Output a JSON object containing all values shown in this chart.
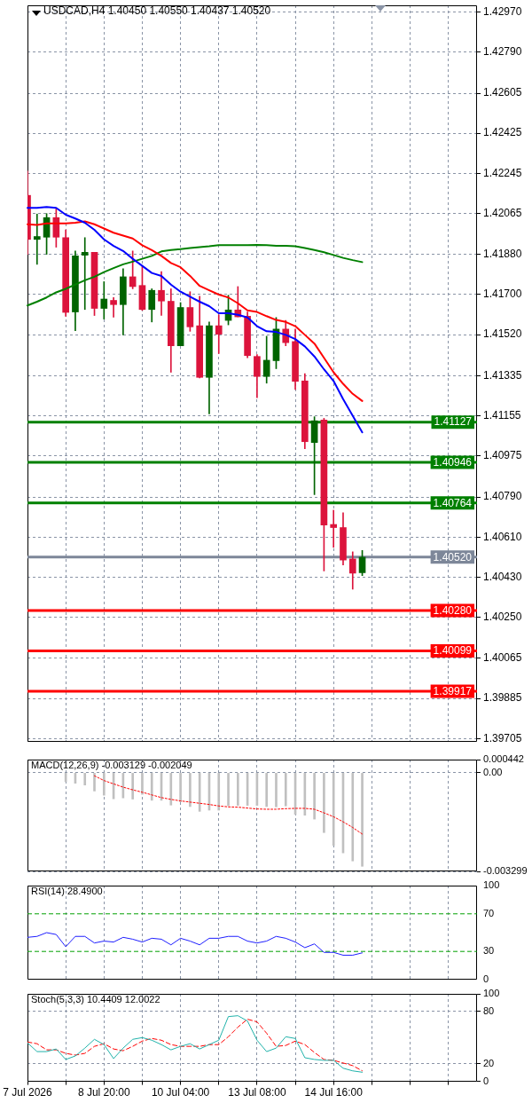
{
  "chart_data": [
    {
      "type": "candlestick",
      "title": "USDCAD,H4 1.40450 1.40550 1.40437 1.40520",
      "categories": [
        null,
        null,
        null,
        null,
        null,
        null,
        null,
        null,
        null,
        null,
        null,
        null,
        null,
        null,
        null,
        null,
        null,
        null,
        null,
        null,
        null,
        null,
        null,
        null,
        null,
        null,
        null,
        null,
        null,
        null,
        null,
        null,
        null,
        null,
        null,
        null,
        null,
        null,
        null,
        null,
        null,
        null,
        null,
        null,
        null,
        null,
        null,
        null
      ],
      "ohlc": [
        [
          1.42146,
          1.42255,
          1.41881,
          1.41948
        ],
        [
          1.41948,
          1.42062,
          1.41836,
          1.41961
        ],
        [
          1.41958,
          1.42064,
          1.41881,
          1.42046
        ],
        [
          1.42046,
          1.42085,
          1.41913,
          1.41958
        ],
        [
          1.41956,
          1.41991,
          1.41603,
          1.4162
        ],
        [
          1.41622,
          1.41896,
          1.41538,
          1.41874
        ],
        [
          1.41877,
          1.41956,
          1.41633,
          1.4189
        ],
        [
          1.4189,
          1.4189,
          1.41606,
          1.41638
        ],
        [
          1.41638,
          1.41758,
          1.4159,
          1.4168
        ],
        [
          1.41674,
          1.41687,
          1.41599,
          1.41655
        ],
        [
          1.41655,
          1.41816,
          1.41519,
          1.4178
        ],
        [
          1.4178,
          1.41896,
          1.41726,
          1.41736
        ],
        [
          1.41741,
          1.41826,
          1.41629,
          1.41633
        ],
        [
          1.41633,
          1.41726,
          1.41577,
          1.41719
        ],
        [
          1.41719,
          1.41803,
          1.41607,
          1.41671
        ],
        [
          1.4167,
          1.41726,
          1.41351,
          1.4147
        ],
        [
          1.4147,
          1.41664,
          1.4147,
          1.41642
        ],
        [
          1.41642,
          1.41713,
          1.41535,
          1.41555
        ],
        [
          1.4156,
          1.41693,
          1.41325,
          1.41328
        ],
        [
          1.41328,
          1.41577,
          1.41164,
          1.4156
        ],
        [
          1.4156,
          1.41609,
          1.41435,
          1.41522
        ],
        [
          1.41584,
          1.41697,
          1.41564,
          1.41631
        ],
        [
          1.41631,
          1.41736,
          1.416,
          1.416
        ],
        [
          1.41603,
          1.41622,
          1.41416,
          1.41426
        ],
        [
          1.41422,
          1.4143,
          1.41237,
          1.41332
        ],
        [
          1.41332,
          1.41513,
          1.41302,
          1.41405
        ],
        [
          1.41403,
          1.41597,
          1.41367,
          1.41545
        ],
        [
          1.41545,
          1.41584,
          1.4147,
          1.41484
        ],
        [
          1.41489,
          1.41545,
          1.41274,
          1.4131
        ],
        [
          1.41312,
          1.41345,
          1.41007,
          1.41039
        ],
        [
          1.41035,
          1.41151,
          1.40801,
          1.41133
        ],
        [
          1.41136,
          1.41144,
          1.40458,
          1.40664
        ],
        [
          1.40667,
          1.40731,
          1.40564,
          1.40653
        ],
        [
          1.40653,
          1.4072,
          1.40485,
          1.40507
        ],
        [
          1.40512,
          1.40544,
          1.40376,
          1.40448
        ],
        [
          1.4045,
          1.4055,
          1.40437,
          1.4052
        ],
        null,
        null,
        null,
        null,
        null,
        null,
        null,
        null,
        null,
        null,
        null,
        null
      ],
      "colors": [
        "#dc143c",
        "#006400",
        "#006400",
        "#dc143c",
        "#dc143c",
        "#006400",
        "#006400",
        "#dc143c",
        "#006400",
        "#dc143c",
        "#006400",
        "#dc143c",
        "#dc143c",
        "#006400",
        "#dc143c",
        "#dc143c",
        "#006400",
        "#dc143c",
        "#dc143c",
        "#006400",
        "#dc143c",
        "#006400",
        "#dc143c",
        "#dc143c",
        "#dc143c",
        "#006400",
        "#006400",
        "#dc143c",
        "#dc143c",
        "#dc143c",
        "#006400",
        "#dc143c",
        "#dc143c",
        "#dc143c",
        "#dc143c",
        "#006400",
        null,
        null,
        null,
        null,
        null,
        null,
        null,
        null,
        null,
        null,
        null,
        null
      ],
      "series": [
        {
          "type": "line",
          "color": "#0000ff",
          "values": [
            1.4209,
            1.4209,
            1.42094,
            1.4209,
            1.42059,
            1.42042,
            1.42023,
            1.41991,
            1.41948,
            1.41919,
            1.41896,
            1.41861,
            1.41829,
            1.41797,
            1.41784,
            1.41745,
            1.41713,
            1.4169,
            1.41668,
            1.41648,
            1.41616,
            1.41616,
            1.41609,
            1.41597,
            1.41558,
            1.41535,
            1.41532,
            1.41519,
            1.415,
            1.41467,
            1.41422,
            1.41364,
            1.41312,
            1.4123,
            1.41156,
            1.41081,
            null,
            null,
            null,
            null,
            null,
            null,
            null,
            null,
            null,
            null,
            null,
            null
          ]
        },
        {
          "type": "line",
          "color": "#ff0000",
          "values": [
            1.42016,
            1.42013,
            1.4202,
            1.4202,
            1.4202,
            1.42023,
            1.42029,
            1.42016,
            1.41997,
            1.41978,
            1.41965,
            1.41952,
            1.41922,
            1.419,
            1.41874,
            1.41842,
            1.41823,
            1.41784,
            1.41739,
            1.41719,
            1.417,
            1.41687,
            1.41661,
            1.41629,
            1.41622,
            1.41603,
            1.41586,
            1.41577,
            1.41558,
            1.41519,
            1.4148,
            1.41416,
            1.41351,
            1.41299,
            1.41254,
            1.41222,
            null,
            null,
            null,
            null,
            null,
            null,
            null,
            null,
            null,
            null,
            null,
            null
          ]
        },
        {
          "type": "line",
          "color": "#008000",
          "values": [
            1.41651,
            1.41668,
            1.41687,
            1.4171,
            1.41726,
            1.41745,
            1.41764,
            1.4178,
            1.41801,
            1.41819,
            1.41836,
            1.41848,
            1.41861,
            1.41874,
            1.41894,
            1.419,
            1.41904,
            1.41909,
            1.41913,
            1.41917,
            1.41922,
            1.41922,
            1.41922,
            1.41922,
            1.41923,
            1.41922,
            1.41919,
            1.41919,
            1.41917,
            1.41909,
            1.419,
            1.4189,
            1.41878,
            1.41865,
            1.41855,
            1.41846,
            null,
            null,
            null,
            null,
            null,
            null,
            null,
            null,
            null,
            null,
            null,
            null
          ]
        }
      ],
      "ylim": [
        1.3969,
        1.43
      ],
      "yticks": [
        1.39705,
        1.39885,
        1.40065,
        {
          "value": 1.4025,
          "label": "1.40250"
        },
        {
          "value": 1.4043,
          "label": "1.40430"
        },
        {
          "value": 1.4061,
          "label": "1.40610"
        },
        {
          "value": 1.4079,
          "label": "1.40790"
        },
        1.40975,
        1.41155,
        1.41335,
        {
          "value": 1.4152,
          "label": "1.41520"
        },
        {
          "value": 1.417,
          "label": "1.41700"
        },
        {
          "value": 1.4188,
          "label": "1.41880"
        },
        1.42065,
        1.42245,
        1.42425,
        1.42605,
        {
          "value": 1.4279,
          "label": "1.42790"
        },
        {
          "value": 1.4297,
          "label": "1.42970"
        }
      ],
      "grid": true,
      "tick_labels": "y",
      "ref_lines": [
        {
          "axis": "y",
          "value": 1.41127,
          "label": "1.41127",
          "color": "#008000"
        },
        {
          "axis": "y",
          "value": 1.40946,
          "label": "1.40946",
          "color": "#008000"
        },
        {
          "axis": "y",
          "value": 1.40764,
          "label": "1.40764",
          "color": "#008000"
        },
        {
          "axis": "y",
          "value": 1.4052,
          "label": "1.40520",
          "color": "#7d8799"
        },
        {
          "axis": "y",
          "value": 1.4028,
          "label": "1.40280",
          "color": "#ff0000"
        },
        {
          "axis": "y",
          "value": 1.40099,
          "label": "1.40099",
          "color": "#ff0000"
        },
        {
          "axis": "y",
          "value": 1.39917,
          "label": "1.39917",
          "color": "#ff0000"
        }
      ]
    },
    {
      "type": "bar",
      "title": "MACD(12,26,9) -0.003129 -0.002049",
      "categories": [
        null,
        null,
        null,
        null,
        null,
        null,
        null,
        null,
        null,
        null,
        null,
        null,
        null,
        null,
        null,
        null,
        null,
        null,
        null,
        null,
        null,
        null,
        null,
        null,
        null,
        null,
        null,
        null,
        null,
        null,
        null,
        null,
        null,
        null,
        null,
        null,
        null,
        null,
        null,
        null,
        null,
        null,
        null,
        null,
        null,
        null,
        null,
        null
      ],
      "series": [
        {
          "color": "#c0c0c0",
          "values": [
            null,
            null,
            null,
            null,
            -0.0003,
            -0.00035,
            -0.00041,
            -0.00061,
            -0.00075,
            -0.00087,
            -0.00084,
            -0.00088,
            -0.00072,
            -0.00092,
            -0.00092,
            -0.00108,
            -0.00097,
            -0.00113,
            -0.00129,
            -0.00125,
            -0.00125,
            -0.0011,
            -0.00109,
            -0.00109,
            -0.00109,
            -0.00113,
            -0.00114,
            -0.00111,
            -0.00139,
            -0.00142,
            -0.00155,
            -0.002,
            -0.00243,
            -0.00268,
            -0.00295,
            -0.003129,
            null,
            null,
            null,
            null,
            null,
            null,
            null,
            null,
            null,
            null,
            null,
            null
          ]
        },
        {
          "type": "line",
          "color": "#ff0000",
          "line_style": "dotted",
          "values": [
            null,
            null,
            null,
            null,
            null,
            null,
            null,
            -0.0001,
            -0.00026,
            -0.00037,
            -0.00048,
            -0.00057,
            -0.00065,
            -0.00074,
            -0.00083,
            -0.00089,
            -0.00094,
            -0.00098,
            -0.00102,
            -0.00106,
            -0.00111,
            -0.00114,
            -0.00115,
            -0.00118,
            -0.00121,
            -0.00122,
            -0.00122,
            -0.0012,
            -0.00119,
            -0.00119,
            -0.00122,
            -0.00134,
            -0.00147,
            -0.00164,
            -0.00183,
            -0.002049,
            null,
            null,
            null,
            null,
            null,
            null,
            null,
            null,
            null,
            null,
            null,
            null
          ]
        }
      ],
      "ylim": [
        -0.003299,
        0.000442
      ],
      "yticks": [
        -0.003299,
        {
          "value": 0,
          "label": "0.00"
        },
        0.000442
      ],
      "grid": true,
      "tick_labels": "y"
    },
    {
      "type": "line",
      "title": "RSI(14) 28.4900",
      "categories": [
        null,
        null,
        null,
        null,
        null,
        null,
        null,
        null,
        null,
        null,
        null,
        null,
        null,
        null,
        null,
        null,
        null,
        null,
        null,
        null,
        null,
        null,
        null,
        null,
        null,
        null,
        null,
        null,
        null,
        null,
        null,
        null,
        null,
        null,
        null,
        null,
        null,
        null,
        null,
        null,
        null,
        null,
        null,
        null,
        null,
        null,
        null,
        null
      ],
      "series": [
        {
          "color": "#1e1eff",
          "values": [
            45,
            46,
            50,
            48,
            35,
            46,
            46,
            39,
            41,
            40,
            45,
            43,
            40,
            44,
            43,
            37,
            44,
            41,
            37,
            44,
            44,
            46,
            46,
            41,
            39,
            41,
            46,
            44,
            40,
            34,
            38,
            29,
            29,
            26,
            26,
            28.49,
            null,
            null,
            null,
            null,
            null,
            null,
            null,
            null,
            null,
            null,
            null,
            null
          ]
        }
      ],
      "ylim": [
        0,
        100
      ],
      "yticks": [
        0,
        30,
        70,
        100
      ],
      "grid": "x",
      "tick_labels": "y",
      "ref_lines": [
        {
          "axis": "y",
          "value": 70,
          "color": "#00a000",
          "line_style": "dashed"
        },
        {
          "axis": "y",
          "value": 30,
          "color": "#00a000",
          "line_style": "dashed"
        }
      ]
    },
    {
      "type": "line",
      "title": "Stoch(5,3,3) 10.4409 12.0022",
      "categories": [
        "7 Jul 2026",
        null,
        null,
        null,
        null,
        null,
        null,
        null,
        "8 Jul 20:00",
        null,
        null,
        null,
        null,
        null,
        null,
        null,
        "10 Jul 04:00",
        null,
        null,
        null,
        null,
        null,
        null,
        null,
        "13 Jul 08:00",
        null,
        null,
        null,
        null,
        null,
        null,
        null,
        "14 Jul 16:00",
        null,
        null,
        null,
        null,
        null,
        null,
        null,
        null,
        null,
        null,
        null,
        null,
        null,
        null,
        null
      ],
      "series": [
        {
          "color": "#20b2aa",
          "values": [
            44,
            34,
            34,
            37,
            25,
            29,
            38,
            48,
            42,
            26,
            38,
            48,
            50,
            47,
            42,
            36,
            40,
            43,
            37,
            42,
            47,
            74,
            75,
            69,
            47,
            34,
            38,
            51,
            49,
            27,
            25,
            24,
            24,
            15,
            12,
            10.4409,
            null,
            null,
            null,
            null,
            null,
            null,
            null,
            null,
            null,
            null,
            null,
            null
          ]
        },
        {
          "color": "#ff0000",
          "line_style": "dashed",
          "values": [
            45,
            43,
            36,
            36,
            32,
            30,
            32,
            40,
            43,
            37,
            35,
            40,
            46,
            49,
            47,
            42,
            40,
            40,
            40,
            42,
            42,
            51,
            62,
            71,
            68,
            55,
            40,
            41,
            46,
            42,
            33,
            25,
            24,
            21,
            18,
            12.0022,
            null,
            null,
            null,
            null,
            null,
            null,
            null,
            null,
            null,
            null,
            null,
            null
          ]
        }
      ],
      "ylim": [
        0,
        100
      ],
      "yticks": [
        0,
        20,
        80,
        100
      ],
      "grid": true
    }
  ]
}
